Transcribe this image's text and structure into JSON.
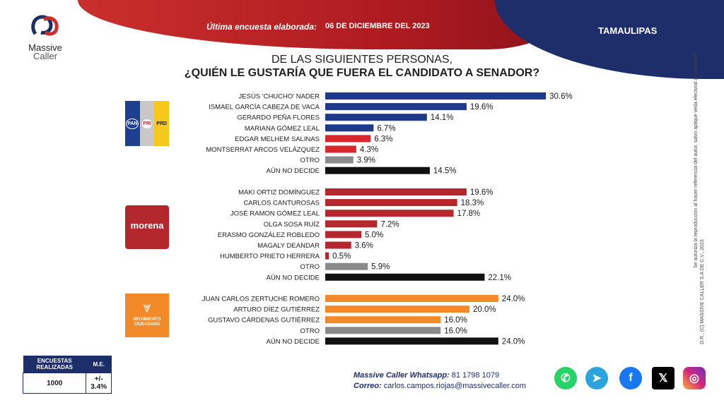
{
  "header": {
    "label": "Última encuesta elaborada:",
    "date": "06 DE DICIEMBRE DEL 2023",
    "state": "TAMAULIPAS"
  },
  "logo": {
    "name": "Massive",
    "sub": "Caller"
  },
  "title": {
    "line1": "DE LAS SIGUIENTES  PERSONAS,",
    "line2": "¿QUIÉN LE GUSTARÍA QUE FUERA EL CANDIDATO  A SENADOR?"
  },
  "colors": {
    "blue": "#1f3a8c",
    "red": "#d9262a",
    "darkred": "#b3282d",
    "orange": "#f28a2a",
    "gray": "#8a8a8a",
    "black": "#111111"
  },
  "chart_data": {
    "type": "bar",
    "orientation": "horizontal",
    "value_suffix": "%",
    "groups": [
      {
        "party_logo": "pan-pri-prd",
        "bars": [
          {
            "label": "JESÚS 'CHUCHO' NADER",
            "value": 30.6,
            "display": "30.6%",
            "color": "blue"
          },
          {
            "label": "ISMAEL GARCÍA CABEZA DE VACA",
            "value": 19.6,
            "display": "19.6%",
            "color": "blue"
          },
          {
            "label": "GERARDO PEÑA FLORES",
            "value": 14.1,
            "display": "14.1%",
            "color": "blue"
          },
          {
            "label": "MARIANA GÓMEZ LEAL",
            "value": 6.7,
            "display": "6.7%",
            "color": "blue"
          },
          {
            "label": "EDGAR MELHEM SALINAS",
            "value": 6.3,
            "display": "6.3%",
            "color": "red"
          },
          {
            "label": "MONTSERRAT ARCOS VELÁZQUEZ",
            "value": 4.3,
            "display": "4.3%",
            "color": "red"
          },
          {
            "label": "OTRO",
            "value": 3.9,
            "display": "3.9%",
            "color": "gray"
          },
          {
            "label": "AÚN NO DECIDE",
            "value": 14.5,
            "display": "14.5%",
            "color": "black"
          }
        ]
      },
      {
        "party_logo": "morena",
        "bars": [
          {
            "label": "MAKI ORTIZ DOMÍNGUEZ",
            "value": 19.6,
            "display": "19.6%",
            "color": "darkred"
          },
          {
            "label": "CARLOS CANTUROSAS",
            "value": 18.3,
            "display": "18.3%",
            "color": "darkred"
          },
          {
            "label": "JOSÉ RAMON GÓMEZ LEAL",
            "value": 17.8,
            "display": "17.8%",
            "color": "darkred"
          },
          {
            "label": "OLGA SOSA RUÍZ",
            "value": 7.2,
            "display": "7.2%",
            "color": "darkred"
          },
          {
            "label": "ERASMO GONZÁLEZ ROBLEDO",
            "value": 5.0,
            "display": "5.0%",
            "color": "darkred"
          },
          {
            "label": "MAGALY DEANDAR",
            "value": 3.6,
            "display": "3.6%",
            "color": "darkred"
          },
          {
            "label": "HUMBERTO PRIETO HERRERA",
            "value": 0.5,
            "display": "0.5%",
            "color": "darkred"
          },
          {
            "label": "OTRO",
            "value": 5.9,
            "display": "5.9%",
            "color": "gray"
          },
          {
            "label": "AÚN NO DECIDE",
            "value": 22.1,
            "display": "22.1%",
            "color": "black"
          }
        ]
      },
      {
        "party_logo": "movimiento-ciudadano",
        "bars": [
          {
            "label": "JUAN CARLOS ZERTUCHE ROMERO",
            "value": 24.0,
            "display": "24.0%",
            "color": "orange"
          },
          {
            "label": "ARTURO DÍEZ GUTIÉRREZ",
            "value": 20.0,
            "display": "20.0%",
            "color": "orange"
          },
          {
            "label": "GUSTAVO CÁRDENAS GUTIÉRREZ",
            "value": 16.0,
            "display": "16.0%",
            "color": "orange"
          },
          {
            "label": "OTRO",
            "value": 16.0,
            "display": "16.0%",
            "color": "gray"
          },
          {
            "label": "AÚN NO DECIDE",
            "value": 24.0,
            "display": "24.0%",
            "color": "black"
          }
        ]
      }
    ]
  },
  "party_logos": {
    "pan": "PAN",
    "pri": "PRI",
    "prd": "PRD",
    "morena": "morena",
    "mc": "MOVIMIENTO CIUDADANO"
  },
  "stats": {
    "col1_header": "ENCUESTAS REALIZADAS",
    "col2_header": "M.E.",
    "col1_value": "1000",
    "col2_value": "+/- 3.4%"
  },
  "contact": {
    "whatsapp_label": "Massive Caller Whatsapp:",
    "whatsapp_value": "81 1798 1079",
    "email_label": "Correo:",
    "email_value": "carlos.campos.riojas@massivecaller.com"
  },
  "side_note": {
    "line1": "D.R., (C) MASSIVE CALLER S.A DE C.V., 2023",
    "line2": "Se autoriza la reproducción al hacer referencia del autor, salvo aplique veda electoral al contenido."
  },
  "social": [
    {
      "icon": "whatsapp-icon",
      "color": "#25d366"
    },
    {
      "icon": "telegram-icon",
      "color": "#2aa3df"
    },
    {
      "icon": "facebook-icon",
      "color": "#1877f2"
    },
    {
      "icon": "x-icon",
      "color": "#000000"
    },
    {
      "icon": "instagram-icon",
      "color": "#d6287a"
    }
  ]
}
